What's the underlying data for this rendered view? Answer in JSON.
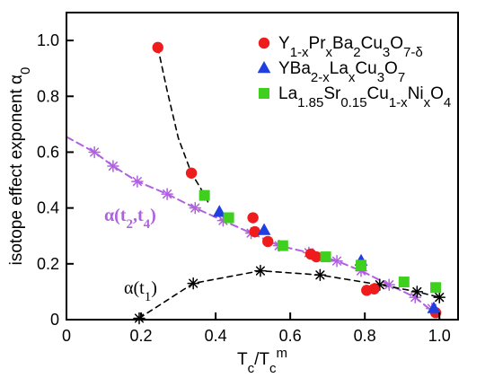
{
  "chart_data": {
    "type": "scatter",
    "xlabel": "T_c/T_c^m",
    "ylabel": "isotope effect exponent α_0",
    "xlim": [
      0,
      1.05
    ],
    "ylim": [
      0,
      1.1
    ],
    "x_ticks": [
      "0",
      "0.2",
      "0.4",
      "0.6",
      "0.8",
      "1.0"
    ],
    "y_ticks": [
      "0",
      "0.2",
      "0.4",
      "0.6",
      "0.8",
      "1.0"
    ],
    "x_tick_values": [
      0,
      0.2,
      0.4,
      0.6,
      0.8,
      1.0
    ],
    "y_tick_values": [
      0,
      0.2,
      0.4,
      0.6,
      0.8,
      1.0
    ],
    "grid": false,
    "legend_position": "top-right",
    "colors": {
      "red": "#ee1c1c",
      "blue": "#1f3fe0",
      "green": "#3fd01f",
      "purple": "#b060e0",
      "black": "#000000"
    },
    "series": [
      {
        "name": "Y1-xPrxBa2Cu3O7-δ",
        "marker": "circle",
        "color": "#ee1c1c",
        "x": [
          0.245,
          0.335,
          0.5,
          0.505,
          0.54,
          0.655,
          0.67,
          0.805,
          0.825,
          0.99
        ],
        "y": [
          0.975,
          0.525,
          0.365,
          0.315,
          0.28,
          0.235,
          0.225,
          0.105,
          0.11,
          0.025
        ]
      },
      {
        "name": "YBa2-xLaxCu3O7",
        "marker": "triangle",
        "color": "#1f3fe0",
        "x": [
          0.41,
          0.53,
          0.79,
          0.985
        ],
        "y": [
          0.385,
          0.32,
          0.21,
          0.04
        ]
      },
      {
        "name": "La1.85Sr0.15Cu1-xNixO4",
        "marker": "square",
        "color": "#3fd01f",
        "x": [
          0.37,
          0.435,
          0.58,
          0.695,
          0.79,
          0.905,
          0.99
        ],
        "y": [
          0.445,
          0.365,
          0.265,
          0.225,
          0.195,
          0.135,
          0.115
        ]
      },
      {
        "name": "α(t2,t4)",
        "marker": "asterisk",
        "color": "#b060e0",
        "x": [
          0.075,
          0.125,
          0.19,
          0.27,
          0.345,
          0.42,
          0.495,
          0.57,
          0.65,
          0.725,
          0.79,
          0.865,
          0.935,
          0.98
        ],
        "y": [
          0.6,
          0.55,
          0.495,
          0.45,
          0.4,
          0.355,
          0.31,
          0.265,
          0.24,
          0.21,
          0.175,
          0.125,
          0.08,
          0.04
        ]
      },
      {
        "name": "α(t1)",
        "marker": "asterisk",
        "color": "#000000",
        "x": [
          0.195,
          0.34,
          0.52,
          0.68,
          0.84,
          0.94,
          1.0
        ],
        "y": [
          0.005,
          0.13,
          0.175,
          0.16,
          0.125,
          0.1,
          0.08
        ]
      }
    ],
    "curves": [
      {
        "label": "α(t2,t4)",
        "color": "#b060e0",
        "dashed": true,
        "x": [
          0.0,
          0.075,
          0.125,
          0.19,
          0.27,
          0.345,
          0.42,
          0.495,
          0.57,
          0.65,
          0.725,
          0.79,
          0.865,
          0.935,
          0.99
        ],
        "y": [
          0.655,
          0.6,
          0.55,
          0.495,
          0.45,
          0.4,
          0.355,
          0.31,
          0.265,
          0.24,
          0.21,
          0.175,
          0.125,
          0.08,
          0.02
        ]
      },
      {
        "label": "Y1-xPrxBa2Cu3O7-δ fit",
        "color": "#000000",
        "dashed": true,
        "x": [
          0.245,
          0.27,
          0.3,
          0.335,
          0.36,
          0.38
        ],
        "y": [
          0.975,
          0.82,
          0.65,
          0.525,
          0.47,
          0.42
        ]
      },
      {
        "label": "α(t1)",
        "color": "#000000",
        "dashed": true,
        "x": [
          0.195,
          0.34,
          0.52,
          0.68,
          0.84,
          0.94,
          1.0
        ],
        "y": [
          0.005,
          0.13,
          0.175,
          0.16,
          0.125,
          0.1,
          0.08
        ]
      }
    ],
    "annotations": [
      {
        "id": "alpha-t2-t4",
        "text": "α(t2,t4)",
        "color": "#b060e0"
      },
      {
        "id": "alpha-t1",
        "text": "α(t1)",
        "color": "#000000"
      }
    ],
    "legend": [
      {
        "label": "Y1-xPrxBa2Cu3O7-δ",
        "marker": "circle",
        "color": "#ee1c1c"
      },
      {
        "label": "YBa2-xLaxCu3O7",
        "marker": "triangle",
        "color": "#1f3fe0"
      },
      {
        "label": "La1.85Sr0.15Cu1-xNixO4",
        "marker": "square",
        "color": "#3fd01f"
      }
    ]
  }
}
